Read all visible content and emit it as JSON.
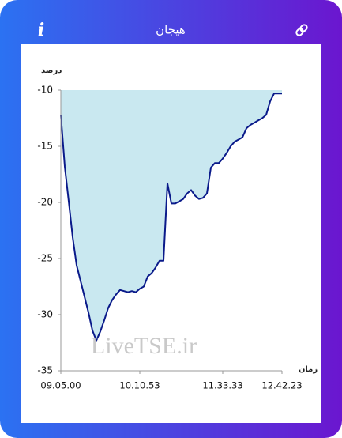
{
  "header": {
    "title": "هیجان",
    "info_icon": "i"
  },
  "chart_data": {
    "type": "line",
    "ylabel": "درصد",
    "xlabel": "زمان",
    "watermark": "LiveTSE.ir",
    "categories": [
      "09.05.00",
      null,
      null,
      null,
      null,
      null,
      null,
      null,
      null,
      null,
      null,
      null,
      null,
      null,
      null,
      null,
      null,
      null,
      null,
      null,
      "10.10.53",
      null,
      null,
      null,
      null,
      null,
      null,
      null,
      null,
      null,
      null,
      null,
      null,
      null,
      null,
      null,
      null,
      null,
      null,
      null,
      null,
      "11.33.33",
      null,
      null,
      null,
      null,
      null,
      null,
      null,
      null,
      null,
      null,
      null,
      null,
      null,
      null,
      "12.42.23"
    ],
    "values": [
      -12.2,
      -16.8,
      -19.9,
      -23.1,
      -25.6,
      -27.0,
      -28.4,
      -29.8,
      -31.4,
      -32.3,
      -31.5,
      -30.5,
      -29.4,
      -28.7,
      -28.2,
      -27.8,
      -27.9,
      -28.0,
      -27.9,
      -28.0,
      -27.7,
      -27.5,
      -26.6,
      -26.3,
      -25.8,
      -25.2,
      -25.2,
      -18.3,
      -20.1,
      -20.1,
      -19.9,
      -19.7,
      -19.2,
      -18.9,
      -19.4,
      -19.7,
      -19.6,
      -19.2,
      -16.9,
      -16.5,
      -16.5,
      -16.1,
      -15.6,
      -15.0,
      -14.6,
      -14.4,
      -14.2,
      -13.4,
      -13.1,
      -12.9,
      -12.7,
      -12.5,
      -12.2,
      -11.0,
      -10.3,
      -10.3,
      -10.3
    ],
    "color": "#0a1a8a",
    "area_color": "#c9e8f0",
    "ylim": [
      -35,
      -10
    ],
    "yticks": [
      -10,
      -15,
      -20,
      -25,
      -30,
      -35
    ]
  }
}
